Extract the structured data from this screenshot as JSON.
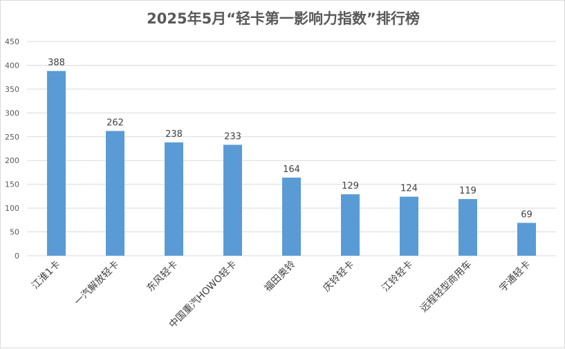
{
  "chart_data": {
    "type": "bar",
    "title": "2025年5月“轻卡第一影响力指数”排行榜",
    "categories": [
      "江淮1卡",
      "一汽解放轻卡",
      "东风轻卡",
      "中国重汽HOWO轻卡",
      "福田奥铃",
      "庆铃轻卡",
      "江铃轻卡",
      "远程轻型商用车",
      "宇通轻卡"
    ],
    "values": [
      388,
      262,
      238,
      233,
      164,
      129,
      124,
      119,
      69
    ],
    "ylim": [
      0,
      450
    ],
    "yticks": [
      0,
      50,
      100,
      150,
      200,
      250,
      300,
      350,
      400,
      450
    ],
    "grid": true,
    "legend": "none",
    "bar_color": "#5b9bd5",
    "grid_color": "#d9d9d9"
  }
}
